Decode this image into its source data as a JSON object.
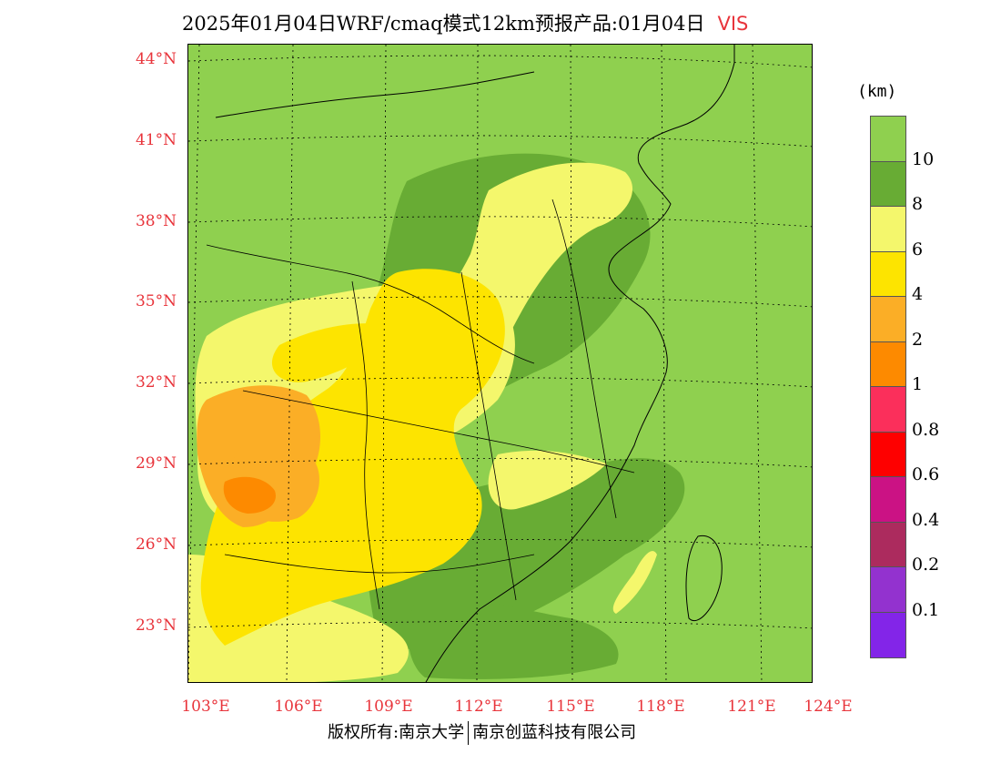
{
  "title": {
    "text": "2025年01月04日WRF/cmaq模式12km预报产品:01月04日",
    "variable": "VIS"
  },
  "lat_labels": [
    "44°N",
    "41°N",
    "38°N",
    "35°N",
    "32°N",
    "29°N",
    "26°N",
    "23°N"
  ],
  "lon_labels": [
    "103°E",
    "106°E",
    "109°E",
    "112°E",
    "115°E",
    "118°E",
    "121°E",
    "124°E"
  ],
  "colorbar": {
    "unit": "(km)",
    "labels": [
      "10",
      "8",
      "6",
      "4",
      "2",
      "1",
      "0.8",
      "0.6",
      "0.4",
      "0.2",
      "0.1"
    ],
    "colors": [
      "#8fd04f",
      "#68ac34",
      "#f4f76c",
      "#fde400",
      "#fbae26",
      "#fd8a00",
      "#fb2f5b",
      "#fe0000",
      "#cb1284",
      "#ac2b5e",
      "#9332cf",
      "#8325e8"
    ]
  },
  "footer": {
    "left": "版权所有:南京大学",
    "right": "南京创蓝科技有限公司"
  }
}
